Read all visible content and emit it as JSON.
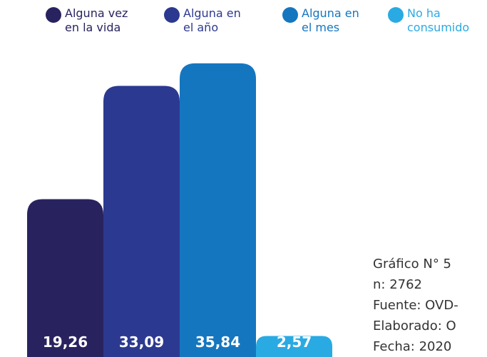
{
  "chart_data": {
    "type": "bar",
    "series": [
      {
        "name": "Alguna vez en la vida",
        "color": "#28235f",
        "values": [
          19.26
        ],
        "value_labels": [
          "19,26"
        ]
      },
      {
        "name": "Alguna en el año",
        "color": "#2c3990",
        "values": [
          33.09
        ],
        "value_labels": [
          "33,09"
        ]
      },
      {
        "name": "Alguna en el mes",
        "color": "#1576c0",
        "values": [
          35.84
        ],
        "value_labels": [
          "35,84"
        ]
      },
      {
        "name": "No ha consumido",
        "color": "#2aaae2",
        "values": [
          2.57
        ],
        "value_labels": [
          "2,57"
        ]
      }
    ],
    "annotations": [
      "Gráfico N° 5",
      "n: 2762",
      "Fuente: OVD-",
      "Elaborado: O",
      "Fecha: 2020"
    ]
  }
}
